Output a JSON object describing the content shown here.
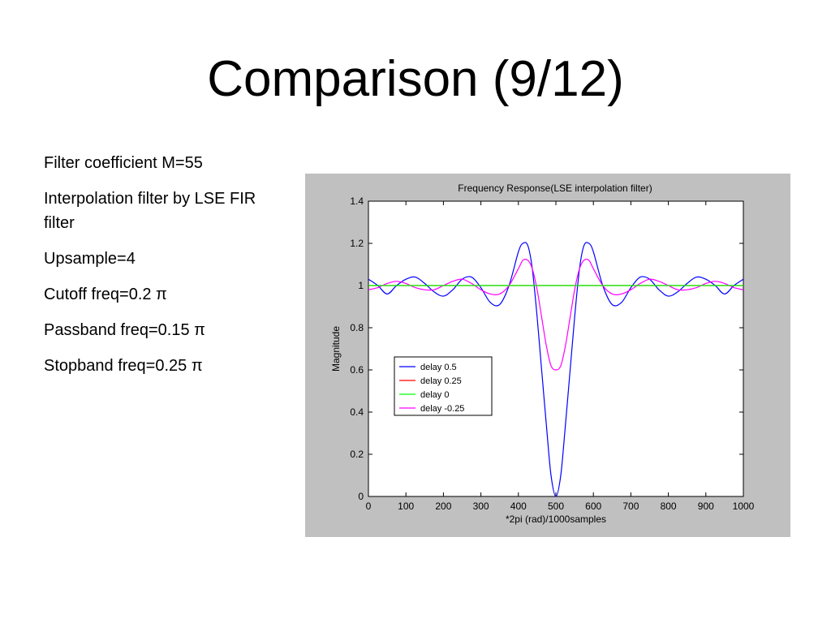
{
  "slide": {
    "title": "Comparison (9/12)",
    "bullets": [
      "Filter coefficient M=55",
      "Interpolation filter by LSE FIR filter",
      "Upsample=4",
      "Cutoff freq=0.2 π",
      "Passband freq=0.15 π",
      "Stopband freq=0.25 π"
    ]
  },
  "colors": {
    "figure_background": "#c0c0c0",
    "axes_background": "#ffffff",
    "delay_0_5": "#0000ff",
    "delay_0_25": "#ff0000",
    "delay_0": "#00ff00",
    "delay_neg_0_25": "#ff00ff"
  },
  "chart_data": {
    "type": "line",
    "title": "Frequency Response(LSE interpolation filter)",
    "xlabel": "*2pi (rad)/1000samples",
    "ylabel": "Magnitude",
    "xlim": [
      0,
      1000
    ],
    "ylim": [
      0,
      1.4
    ],
    "xticks": [
      "0",
      "100",
      "200",
      "300",
      "400",
      "500",
      "600",
      "700",
      "800",
      "900",
      "1000"
    ],
    "yticks": [
      "0",
      "0.2",
      "0.4",
      "0.6",
      "0.8",
      "1",
      "1.2",
      "1.4"
    ],
    "grid": false,
    "legend_position": "left",
    "x": [
      0,
      25,
      50,
      75,
      100,
      125,
      150,
      175,
      200,
      225,
      250,
      275,
      300,
      325,
      350,
      375,
      400,
      412,
      425,
      437,
      450,
      462,
      475,
      487,
      500,
      513,
      525,
      538,
      550,
      563,
      575,
      588,
      600,
      625,
      650,
      675,
      700,
      725,
      750,
      775,
      800,
      825,
      850,
      875,
      900,
      925,
      950,
      975,
      1000
    ],
    "series": [
      {
        "name": "delay 0.5",
        "values": [
          1.03,
          1.0,
          0.96,
          1.0,
          1.03,
          1.04,
          1.01,
          0.97,
          0.95,
          0.98,
          1.03,
          1.04,
          0.99,
          0.92,
          0.91,
          1.0,
          1.16,
          1.2,
          1.19,
          1.08,
          0.85,
          0.6,
          0.33,
          0.1,
          0.0,
          0.1,
          0.33,
          0.6,
          0.85,
          1.08,
          1.19,
          1.2,
          1.16,
          1.0,
          0.91,
          0.92,
          0.99,
          1.04,
          1.03,
          0.98,
          0.95,
          0.97,
          1.01,
          1.04,
          1.03,
          1.0,
          0.96,
          1.0,
          1.03
        ]
      },
      {
        "name": "delay 0.25",
        "values": [
          1.0,
          1.0,
          1.0,
          1.0,
          1.0,
          1.0,
          1.0,
          1.0,
          1.0,
          1.0,
          1.0,
          1.0,
          1.0,
          1.0,
          1.0,
          1.0,
          1.0,
          1.0,
          1.0,
          1.0,
          1.0,
          1.0,
          1.0,
          1.0,
          1.0,
          1.0,
          1.0,
          1.0,
          1.0,
          1.0,
          1.0,
          1.0,
          1.0,
          1.0,
          1.0,
          1.0,
          1.0,
          1.0,
          1.0,
          1.0,
          1.0,
          1.0,
          1.0,
          1.0,
          1.0,
          1.0,
          1.0,
          1.0,
          1.0
        ]
      },
      {
        "name": "delay 0",
        "values": [
          1.0,
          1.0,
          1.0,
          1.0,
          1.0,
          1.0,
          1.0,
          1.0,
          1.0,
          1.0,
          1.0,
          1.0,
          1.0,
          1.0,
          1.0,
          1.0,
          1.0,
          1.0,
          1.0,
          1.0,
          1.0,
          1.0,
          1.0,
          1.0,
          1.0,
          1.0,
          1.0,
          1.0,
          1.0,
          1.0,
          1.0,
          1.0,
          1.0,
          1.0,
          1.0,
          1.0,
          1.0,
          1.0,
          1.0,
          1.0,
          1.0,
          1.0,
          1.0,
          1.0,
          1.0,
          1.0,
          1.0,
          1.0,
          1.0
        ]
      },
      {
        "name": "delay -0.25",
        "values": [
          0.98,
          0.99,
          1.01,
          1.02,
          1.01,
          0.99,
          0.98,
          0.98,
          1.0,
          1.02,
          1.03,
          1.01,
          0.98,
          0.96,
          0.96,
          1.0,
          1.08,
          1.12,
          1.12,
          1.08,
          0.98,
          0.85,
          0.71,
          0.62,
          0.6,
          0.62,
          0.71,
          0.85,
          0.98,
          1.08,
          1.12,
          1.12,
          1.08,
          1.0,
          0.96,
          0.96,
          0.98,
          1.01,
          1.03,
          1.02,
          1.0,
          0.98,
          0.98,
          0.99,
          1.01,
          1.02,
          1.01,
          0.99,
          0.98
        ]
      }
    ]
  }
}
